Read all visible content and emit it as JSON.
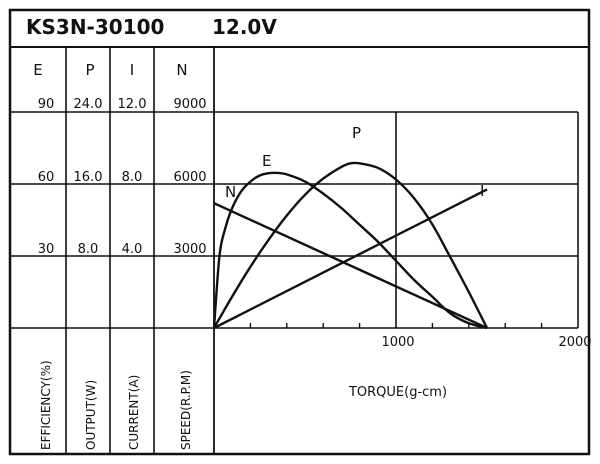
{
  "title": "KS3N-30100",
  "voltage": "12.0V",
  "columns": [
    {
      "header": "E",
      "name": "EFFICIENCY(%)",
      "ticks": [
        "90",
        "60",
        "30"
      ]
    },
    {
      "header": "P",
      "name": "OUTPUT(W)",
      "ticks": [
        "24.0",
        "16.0",
        "8.0"
      ]
    },
    {
      "header": "I",
      "name": "CURRENT(A)",
      "ticks": [
        "12.0",
        "8.0",
        "4.0"
      ]
    },
    {
      "header": "N",
      "name": "SPEED(R.P.M)",
      "ticks": [
        "9000",
        "6000",
        "3000"
      ]
    }
  ],
  "chart_data": {
    "type": "line",
    "title": "KS3N-30100 12.0V",
    "xlabel": "TORQUE(g-cm)",
    "x_ticks": [
      "1000",
      "2000"
    ],
    "xlim": [
      0,
      2000
    ],
    "grid": true,
    "series": [
      {
        "name": "E",
        "axis": "EFFICIENCY(%)",
        "points": [
          [
            0,
            0
          ],
          [
            30,
            30
          ],
          [
            60,
            41
          ],
          [
            100,
            50
          ],
          [
            150,
            57
          ],
          [
            200,
            61
          ],
          [
            250,
            63.5
          ],
          [
            300,
            64.5
          ],
          [
            350,
            64.6
          ],
          [
            400,
            64
          ],
          [
            500,
            61
          ],
          [
            600,
            56
          ],
          [
            700,
            50
          ],
          [
            800,
            43
          ],
          [
            900,
            36
          ],
          [
            1000,
            28
          ],
          [
            1100,
            20
          ],
          [
            1200,
            13
          ],
          [
            1300,
            6
          ],
          [
            1400,
            2
          ],
          [
            1500,
            0
          ]
        ]
      },
      {
        "name": "P",
        "axis": "OUTPUT(W)",
        "points": [
          [
            0,
            0
          ],
          [
            100,
            3.5
          ],
          [
            200,
            6.8
          ],
          [
            300,
            9.8
          ],
          [
            400,
            12.5
          ],
          [
            500,
            14.8
          ],
          [
            600,
            16.6
          ],
          [
            700,
            17.9
          ],
          [
            750,
            18.3
          ],
          [
            800,
            18.3
          ],
          [
            900,
            17.8
          ],
          [
            1000,
            16.5
          ],
          [
            1100,
            14.4
          ],
          [
            1200,
            11.5
          ],
          [
            1300,
            7.8
          ],
          [
            1400,
            4
          ],
          [
            1500,
            0
          ]
        ]
      },
      {
        "name": "I",
        "axis": "CURRENT(A)",
        "points": [
          [
            0,
            0
          ],
          [
            1500,
            7.7
          ]
        ]
      },
      {
        "name": "N",
        "axis": "SPEED(R.P.M)",
        "points": [
          [
            0,
            5200
          ],
          [
            1500,
            0
          ]
        ]
      }
    ]
  }
}
